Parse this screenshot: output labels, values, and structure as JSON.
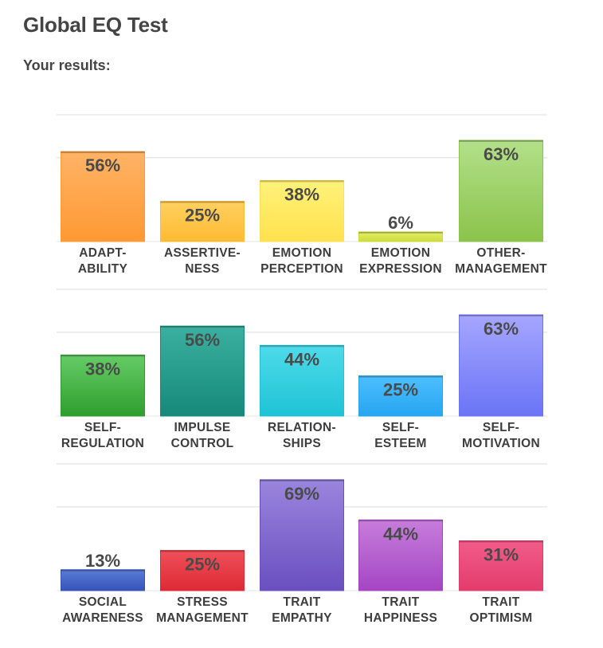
{
  "title": "Global EQ Test",
  "subtitle": "Your results:",
  "chart_data": {
    "type": "bar",
    "ylim": [
      0,
      100
    ],
    "grid": true,
    "value_suffix": "%",
    "rows": [
      {
        "categories": [
          [
            "ADAPT-",
            "ABILITY"
          ],
          [
            "ASSERTIVE-",
            "NESS"
          ],
          [
            "EMOTION",
            "PERCEPTION"
          ],
          [
            "EMOTION",
            "EXPRESSION"
          ],
          [
            "OTHER-",
            "MANAGEMENT"
          ]
        ],
        "values": [
          56,
          25,
          38,
          6,
          63
        ],
        "colors": [
          [
            "#ffb366",
            "#ff9933"
          ],
          [
            "#ffd060",
            "#ffbb33"
          ],
          [
            "#fff27a",
            "#ffe14d"
          ],
          [
            "#e3ee6a",
            "#cddc39"
          ],
          [
            "#b2e08a",
            "#8bc34a"
          ]
        ]
      },
      {
        "categories": [
          [
            "SELF-",
            "REGULATION"
          ],
          [
            "IMPULSE",
            "CONTROL"
          ],
          [
            "RELATION-",
            "SHIPS"
          ],
          [
            "SELF-",
            "ESTEEM"
          ],
          [
            "SELF-",
            "MOTIVATION"
          ]
        ],
        "values": [
          38,
          56,
          44,
          25,
          63
        ],
        "colors": [
          [
            "#66cc66",
            "#2e9e2e"
          ],
          [
            "#3bb0a0",
            "#16897a"
          ],
          [
            "#4ddbea",
            "#1fc3d6"
          ],
          [
            "#4dbfff",
            "#26a5f0"
          ],
          [
            "#a6a6ff",
            "#6a74f5"
          ]
        ]
      },
      {
        "categories": [
          [
            "SOCIAL",
            "AWARENESS"
          ],
          [
            "STRESS",
            "MANAGEMENT"
          ],
          [
            "TRAIT",
            "EMPATHY"
          ],
          [
            "TRAIT",
            "HAPPINESS"
          ],
          [
            "TRAIT",
            "OPTIMISM"
          ]
        ],
        "values": [
          13,
          25,
          69,
          44,
          31
        ],
        "colors": [
          [
            "#5a7cd6",
            "#3553b8"
          ],
          [
            "#f0505a",
            "#dd2a35"
          ],
          [
            "#9a85dd",
            "#6a4fc0"
          ],
          [
            "#c77ddb",
            "#a545c4"
          ],
          [
            "#f25c8a",
            "#e23c6c"
          ]
        ]
      }
    ]
  }
}
